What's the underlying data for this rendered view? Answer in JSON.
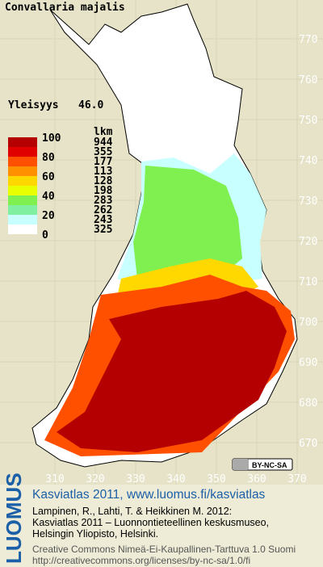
{
  "title": "Convallaria majalis",
  "frequency": {
    "label": "Yleisyys",
    "value": "46.0"
  },
  "legend": {
    "scale_labels": [
      100,
      80,
      60,
      40,
      20,
      0
    ],
    "count_header": "lkm",
    "classes": [
      {
        "color": "#b40000",
        "count": 944
      },
      {
        "color": "#e00000",
        "count": 355
      },
      {
        "color": "#ff5000",
        "count": 177
      },
      {
        "color": "#ff9000",
        "count": 113
      },
      {
        "color": "#ffd800",
        "count": 128
      },
      {
        "color": "#e8ff00",
        "count": 198
      },
      {
        "color": "#80f050",
        "count": 283
      },
      {
        "color": "#80f0a0",
        "count": 262
      },
      {
        "color": "#c8ffff",
        "count": 243
      },
      {
        "color": "#ffffff",
        "count": 325
      }
    ]
  },
  "y_labels": [
    770,
    760,
    750,
    740,
    730,
    720,
    710,
    700,
    690,
    680,
    670
  ],
  "x_labels": [
    310,
    320,
    330,
    340,
    350,
    360,
    370
  ],
  "badge": "BY-NC-SA",
  "footer": {
    "brand": "LUOMUS",
    "link": "Kasviatlas 2011, www.luomus.fi/kasviatlas",
    "citation": [
      "Lampinen, R., Lahti, T. & Heikkinen M. 2012:",
      "Kasviatlas 2011 – Luonnontieteellinen keskusmuseo,",
      "Helsingin Yliopisto, Helsinki."
    ],
    "license": [
      "Creative Commons Nimeä-Ei-Kaupallinen-Tarttuva 1.0 Suomi",
      "http://creativecommons.org/licenses/by-nc-sa/1.0/fi"
    ]
  }
}
